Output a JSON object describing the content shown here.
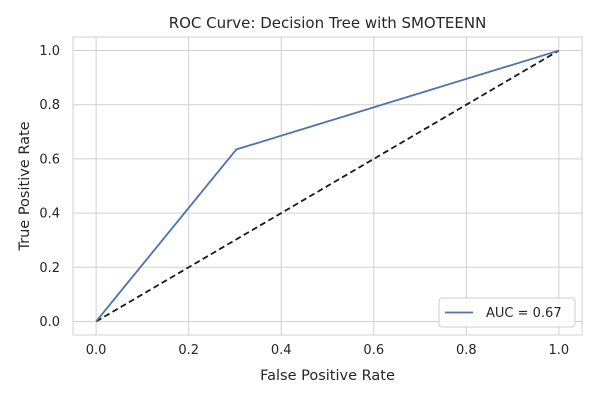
{
  "chart_data": {
    "type": "line",
    "title": "ROC Curve: Decision Tree with SMOTEENN",
    "xlabel": "False Positive Rate",
    "ylabel": "True Positive Rate",
    "xlim": [
      -0.05,
      1.05
    ],
    "ylim": [
      -0.05,
      1.05
    ],
    "grid": true,
    "legend_position": "lower-right",
    "x_ticks": [
      0.0,
      0.2,
      0.4,
      0.6,
      0.8,
      1.0
    ],
    "y_ticks": [
      0.0,
      0.2,
      0.4,
      0.6,
      0.8,
      1.0
    ],
    "x_tick_labels": [
      "0.0",
      "0.2",
      "0.4",
      "0.6",
      "0.8",
      "1.0"
    ],
    "y_tick_labels": [
      "0.0",
      "0.2",
      "0.4",
      "0.6",
      "0.8",
      "1.0"
    ],
    "series": [
      {
        "name": "AUC = 0.67",
        "x": [
          0.0,
          0.303,
          1.0
        ],
        "y": [
          0.0,
          0.635,
          1.0
        ],
        "color": "#4c72b0",
        "style": "solid"
      },
      {
        "x": [
          0.0,
          1.0
        ],
        "y": [
          0.0,
          1.0
        ],
        "color": "#1a1a1a",
        "style": "dashed"
      }
    ],
    "grid_color": "#d0d0d0"
  }
}
